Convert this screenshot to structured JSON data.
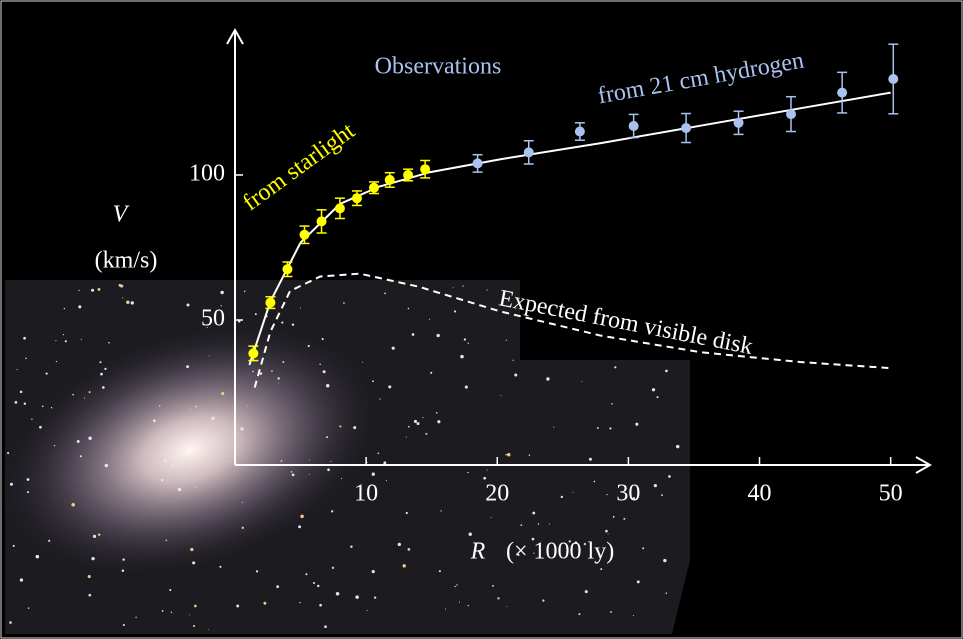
{
  "chart_data": {
    "type": "scatter",
    "y_label_symbol": "V",
    "y_label_unit": "(km/s)",
    "x_label_symbol": "R",
    "x_label_unit": "(× 1000 ly)",
    "annotation": "Observations",
    "xlim": [
      0,
      53
    ],
    "ylim": [
      0,
      150
    ],
    "xticks": [
      10,
      20,
      30,
      40,
      50
    ],
    "yticks": [
      50,
      100
    ],
    "series": [
      {
        "name": "from  starlight",
        "color": "#ffff00",
        "x": [
          1.4,
          2.7,
          4.0,
          5.3,
          6.6,
          8.0,
          9.3,
          10.6,
          11.8,
          13.2,
          14.5
        ],
        "values": [
          38.5,
          56,
          67.5,
          79.4,
          84,
          88.5,
          92,
          95.6,
          98.3,
          100,
          102
        ],
        "errors": [
          2.5,
          2,
          2.5,
          3,
          4,
          3.5,
          2.5,
          2,
          2.5,
          2,
          3
        ]
      },
      {
        "name": "from 21 cm hydrogen",
        "color": "#a9c2ee",
        "x": [
          18.5,
          22.4,
          26.3,
          30.4,
          34.4,
          38.4,
          42.4,
          46.3,
          50.2
        ],
        "values": [
          104,
          107.8,
          115,
          116.9,
          116.2,
          118,
          121,
          128.4,
          133.1
        ],
        "errors": [
          3,
          4,
          3,
          4,
          5,
          4,
          6,
          7,
          12
        ]
      }
    ],
    "lines": [
      {
        "color": "#ffffff",
        "dashed": false,
        "x": [
          1.1,
          2.7,
          5,
          8,
          11,
          14.9,
          20.2,
          27.9,
          35.5,
          43.1,
          50
        ],
        "values": [
          34.5,
          56.4,
          76.7,
          90,
          96,
          101,
          105.4,
          111,
          117,
          123,
          128.4
        ]
      },
      {
        "name": "Expected from visible disk",
        "color": "#ffffff",
        "dashed": true,
        "x": [
          1.5,
          2.7,
          4.2,
          6.5,
          9.5,
          14,
          20.2,
          27.9,
          35.5,
          43.1,
          50
        ],
        "values": [
          26.7,
          46,
          60,
          65,
          66,
          61.5,
          53,
          44.6,
          38.9,
          35.5,
          33.4
        ]
      }
    ]
  }
}
